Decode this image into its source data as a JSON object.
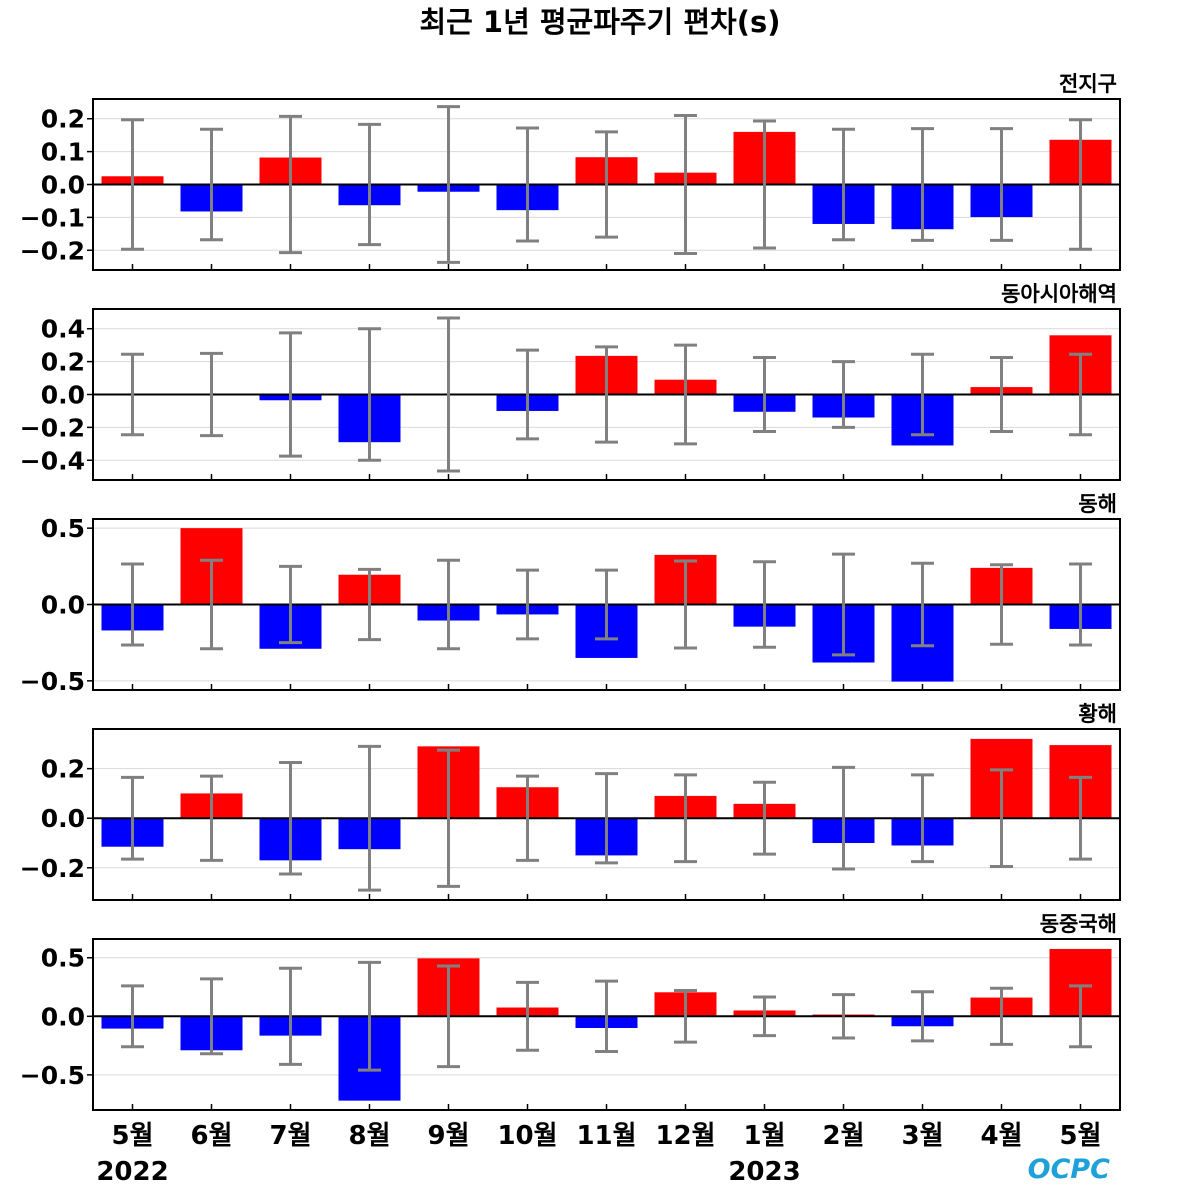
{
  "title": "최근 1년 평균파주기 편차(s)",
  "colors": {
    "positive": "#ff0000",
    "negative": "#0000ff",
    "errorbar": "#808080",
    "zero_line": "#000000",
    "grid": "#d9d9d9",
    "logo": "#1ea0d8"
  },
  "logo_text": "OCPC",
  "chart_data": [
    {
      "type": "bar",
      "title": "전지구",
      "categories": [
        "5월",
        "6월",
        "7월",
        "8월",
        "9월",
        "10월",
        "11월",
        "12월",
        "1월",
        "2월",
        "3월",
        "4월",
        "5월"
      ],
      "values": [
        0.025,
        -0.082,
        0.082,
        -0.063,
        -0.022,
        -0.078,
        0.083,
        0.036,
        0.16,
        -0.12,
        -0.136,
        -0.099,
        0.136
      ],
      "error": [
        0.197,
        0.168,
        0.207,
        0.183,
        0.237,
        0.172,
        0.16,
        0.21,
        0.193,
        0.168,
        0.17,
        0.17,
        0.197
      ],
      "ylim": [
        -0.26,
        0.26
      ],
      "yticks": [
        0.2,
        0.1,
        0.0,
        -0.1,
        -0.2
      ],
      "ytick_labels": [
        "0.2",
        "0.1",
        "0.0",
        "−0.1",
        "−0.2"
      ]
    },
    {
      "type": "bar",
      "title": "동아시아해역",
      "categories": [
        "5월",
        "6월",
        "7월",
        "8월",
        "9월",
        "10월",
        "11월",
        "12월",
        "1월",
        "2월",
        "3월",
        "4월",
        "5월"
      ],
      "values": [
        0.0,
        0.0,
        -0.035,
        -0.29,
        0.0,
        -0.1,
        0.235,
        0.09,
        -0.105,
        -0.14,
        -0.31,
        0.045,
        0.36
      ],
      "error": [
        0.245,
        0.25,
        0.375,
        0.4,
        0.465,
        0.27,
        0.29,
        0.3,
        0.225,
        0.2,
        0.245,
        0.225,
        0.245
      ],
      "ylim": [
        -0.52,
        0.52
      ],
      "yticks": [
        0.4,
        0.2,
        0.0,
        -0.2,
        -0.4
      ],
      "ytick_labels": [
        "0.4",
        "0.2",
        "0.0",
        "−0.2",
        "−0.4"
      ]
    },
    {
      "type": "bar",
      "title": "동해",
      "categories": [
        "5월",
        "6월",
        "7월",
        "8월",
        "9월",
        "10월",
        "11월",
        "12월",
        "1월",
        "2월",
        "3월",
        "4월",
        "5월"
      ],
      "values": [
        -0.17,
        0.5,
        -0.29,
        0.195,
        -0.105,
        -0.065,
        -0.35,
        0.325,
        -0.145,
        -0.38,
        -0.505,
        0.24,
        -0.16
      ],
      "error": [
        0.265,
        0.29,
        0.25,
        0.23,
        0.29,
        0.225,
        0.225,
        0.285,
        0.28,
        0.33,
        0.27,
        0.26,
        0.265
      ],
      "ylim": [
        -0.56,
        0.56
      ],
      "yticks": [
        0.5,
        0.0,
        -0.5
      ],
      "ytick_labels": [
        "0.5",
        "0.0",
        "−0.5"
      ]
    },
    {
      "type": "bar",
      "title": "황해",
      "categories": [
        "5월",
        "6월",
        "7월",
        "8월",
        "9월",
        "10월",
        "11월",
        "12월",
        "1월",
        "2월",
        "3월",
        "4월",
        "5월"
      ],
      "values": [
        -0.115,
        0.1,
        -0.17,
        -0.125,
        0.29,
        0.125,
        -0.15,
        0.09,
        0.058,
        -0.1,
        -0.11,
        0.32,
        0.295
      ],
      "error": [
        0.165,
        0.17,
        0.225,
        0.29,
        0.275,
        0.17,
        0.18,
        0.175,
        0.145,
        0.205,
        0.175,
        0.195,
        0.165
      ],
      "ylim": [
        -0.33,
        0.36
      ],
      "yticks": [
        0.2,
        0.0,
        -0.2
      ],
      "ytick_labels": [
        "0.2",
        "0.0",
        "−0.2"
      ]
    },
    {
      "type": "bar",
      "title": "동중국해",
      "categories": [
        "5월",
        "6월",
        "7월",
        "8월",
        "9월",
        "10월",
        "11월",
        "12월",
        "1월",
        "2월",
        "3월",
        "4월",
        "5월"
      ],
      "values": [
        -0.105,
        -0.29,
        -0.165,
        -0.72,
        0.495,
        0.075,
        -0.1,
        0.205,
        0.05,
        0.015,
        -0.085,
        0.16,
        0.575
      ],
      "error": [
        0.26,
        0.32,
        0.41,
        0.46,
        0.43,
        0.29,
        0.3,
        0.22,
        0.165,
        0.185,
        0.21,
        0.24,
        0.26
      ],
      "ylim": [
        -0.8,
        0.66
      ],
      "yticks": [
        0.5,
        0.0,
        -0.5
      ],
      "ytick_labels": [
        "0.5",
        "0.0",
        "−0.5"
      ]
    }
  ],
  "x_tick_labels": [
    "5월",
    "6월",
    "7월",
    "8월",
    "9월",
    "10월",
    "11월",
    "12월",
    "1월",
    "2월",
    "3월",
    "4월",
    "5월"
  ],
  "year_labels": [
    {
      "text": "2022",
      "index": 0
    },
    {
      "text": "2023",
      "index": 8
    }
  ]
}
